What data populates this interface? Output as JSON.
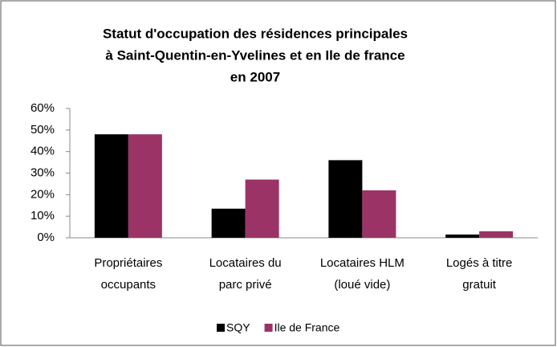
{
  "chart_data": {
    "type": "bar",
    "title": [
      "Statut d'occupation des résidences principales",
      "à Saint-Quentin-en-Yvelines et en Ile de france",
      "en 2007"
    ],
    "categories": [
      [
        "Propriétaires",
        "occupants"
      ],
      [
        "Locataires du",
        "parc privé"
      ],
      [
        "Locataires HLM",
        "(loué vide)"
      ],
      [
        "Logés à titre",
        "gratuit"
      ]
    ],
    "series": [
      {
        "name": "SQY",
        "color": "#000000",
        "values": [
          48,
          13.5,
          36,
          1.5
        ]
      },
      {
        "name": "Ile de France",
        "color": "#9b3366",
        "values": [
          48,
          27,
          22,
          3
        ]
      }
    ],
    "ylim": [
      0,
      60
    ],
    "yticks": [
      {
        "value": 0,
        "label": "0%"
      },
      {
        "value": 10,
        "label": "10%"
      },
      {
        "value": 20,
        "label": "20%"
      },
      {
        "value": 30,
        "label": "30%"
      },
      {
        "value": 40,
        "label": "40%"
      },
      {
        "value": 50,
        "label": "50%"
      },
      {
        "value": 60,
        "label": "60%"
      }
    ],
    "legend": "bottom"
  }
}
